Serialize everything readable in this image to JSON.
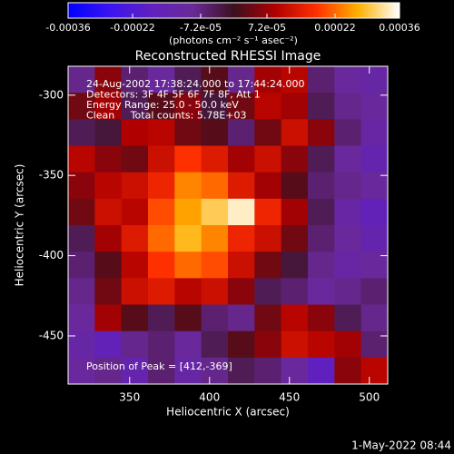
{
  "chart_data": {
    "type": "heatmap",
    "title": "Reconstructed RHESSI Image",
    "xlabel": "Heliocentric X (arcsec)",
    "ylabel": "Heliocentric Y (arcsec)",
    "xlim": [
      311.5,
      511.5
    ],
    "ylim": [
      -480,
      -282
    ],
    "xticks": [
      350,
      400,
      450,
      500
    ],
    "yticks": [
      -300,
      -350,
      -400,
      -450
    ],
    "clim": [
      -0.00036,
      0.00036
    ],
    "cticks": [
      -0.00036,
      -0.00022,
      {
        "value": -7.2e-05,
        "label": "-7.2e-05"
      },
      {
        "value": 7.2e-05,
        "label": "7.2e-05"
      },
      0.00022,
      0.00036
    ],
    "colorbar_label": "(photons cm⁻² s⁻¹ asec⁻²)",
    "colormap": [
      "#0000ff",
      "#3a14f0",
      "#6020c0",
      "#6a2a98",
      "#3c1020",
      "#b00000",
      "#ff3000",
      "#ffb000",
      "#ffffff"
    ],
    "annotations": [
      "24-Aug-2002 17:38:24.000 to 17:44:24.000",
      "Detectors: 3F 4F 5F 6F 7F 8F, Att 1",
      "Energy Range: 25.0 - 50.0 keV",
      "Clean     Total counts: 5.78E+03"
    ],
    "peak_label": "Position of Peak = [412,-369]",
    "footer": "1-May-2022 08:44",
    "z": [
      [
        -8e-05,
        6e-05,
        -6e-05,
        -0.0001,
        -4e-05,
        2e-05,
        -8e-05,
        8e-05,
        0.0001,
        -6e-05,
        -0.0001,
        -0.00012
      ],
      [
        4e-05,
        8e-05,
        -4e-05,
        2e-05,
        6e-05,
        -2e-05,
        4e-05,
        0.0001,
        8e-05,
        -4e-05,
        -8e-05,
        -0.0001
      ],
      [
        -4e-05,
        -2e-05,
        9e-05,
        0.0001,
        4e-05,
        2e-05,
        -6e-05,
        4e-05,
        0.00012,
        6e-05,
        -6e-05,
        -0.00012
      ],
      [
        0.0001,
        6e-05,
        4e-05,
        0.00012,
        0.00018,
        0.00014,
        8e-05,
        0.00012,
        6e-05,
        -4e-05,
        -0.0001,
        -0.00014
      ],
      [
        6e-05,
        0.0001,
        0.00012,
        0.00016,
        0.00024,
        0.00022,
        0.00014,
        8e-05,
        2e-05,
        -6e-05,
        -8e-05,
        -0.0001
      ],
      [
        4e-05,
        0.00012,
        0.0001,
        0.0002,
        0.00026,
        0.0003,
        0.00034,
        0.00016,
        8e-05,
        -4e-05,
        -0.00012,
        -0.00016
      ],
      [
        -4e-05,
        8e-05,
        0.00014,
        0.00022,
        0.00028,
        0.00024,
        0.00016,
        0.00012,
        4e-05,
        -6e-05,
        -0.0001,
        -0.00014
      ],
      [
        -6e-05,
        2e-05,
        0.0001,
        0.00018,
        0.00022,
        0.0002,
        0.00012,
        4e-05,
        -2e-05,
        -8e-05,
        -0.00012,
        -0.0001
      ],
      [
        -8e-05,
        4e-05,
        0.00012,
        0.00014,
        0.0001,
        0.00012,
        6e-05,
        -4e-05,
        -6e-05,
        -0.0001,
        -8e-05,
        -6e-05
      ],
      [
        -0.0001,
        8e-05,
        2e-05,
        -4e-05,
        2e-05,
        -6e-05,
        -8e-05,
        4e-05,
        0.0001,
        6e-05,
        -4e-05,
        -8e-05
      ],
      [
        -0.00012,
        -0.00016,
        -8e-05,
        -6e-05,
        -0.0001,
        -4e-05,
        2e-05,
        6e-05,
        0.00012,
        0.0001,
        8e-05,
        -6e-05
      ],
      [
        -0.0001,
        -8e-05,
        -0.00014,
        -6e-05,
        -0.00012,
        -8e-05,
        -4e-05,
        -6e-05,
        -0.0001,
        -0.00018,
        6e-05,
        0.0001
      ]
    ]
  }
}
